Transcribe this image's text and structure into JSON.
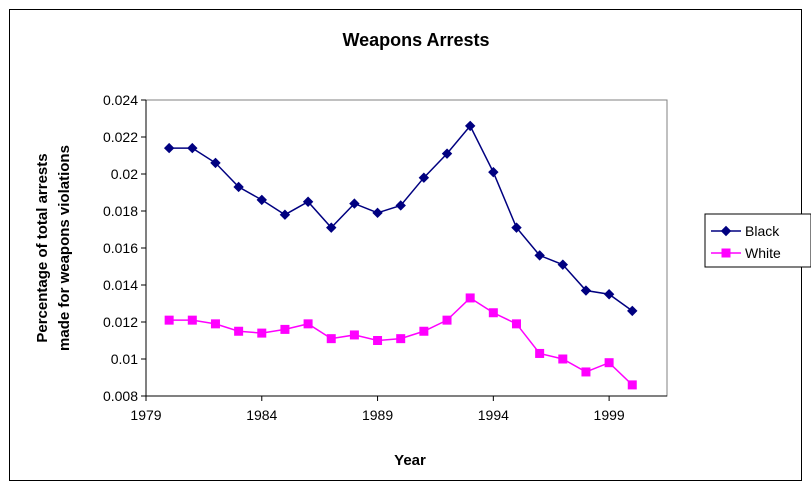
{
  "chart_data": {
    "type": "line",
    "title": "Weapons Arrests",
    "xlabel": "Year",
    "ylabel": "Percentage of total arrests made for weapons violations",
    "ylabel_lines": [
      "Percentage of total arrests",
      "made for weapons violations"
    ],
    "xlim": [
      1979,
      2001.5
    ],
    "ylim": [
      0.008,
      0.024
    ],
    "x_ticks": [
      1979,
      1984,
      1989,
      1994,
      1999
    ],
    "y_ticks": [
      0.008,
      0.01,
      0.012,
      0.014,
      0.016,
      0.018,
      0.02,
      0.022,
      0.024
    ],
    "y_tick_labels": [
      "0.008",
      "0.01",
      "0.012",
      "0.014",
      "0.016",
      "0.018",
      "0.02",
      "0.022",
      "0.024"
    ],
    "legend_position": "right",
    "x": [
      1980,
      1981,
      1982,
      1983,
      1984,
      1985,
      1986,
      1987,
      1988,
      1989,
      1990,
      1991,
      1992,
      1993,
      1994,
      1995,
      1996,
      1997,
      1998,
      1999,
      2000
    ],
    "series": [
      {
        "name": "Black",
        "color": "#000080",
        "marker": "diamond",
        "values": [
          0.0214,
          0.0214,
          0.0206,
          0.0193,
          0.0186,
          0.0178,
          0.0185,
          0.0171,
          0.0184,
          0.0179,
          0.0183,
          0.0198,
          0.0211,
          0.0226,
          0.0201,
          0.0171,
          0.0156,
          0.0151,
          0.0137,
          0.0135,
          0.0126
        ]
      },
      {
        "name": "White",
        "color": "#ff00ff",
        "marker": "square",
        "values": [
          0.0121,
          0.0121,
          0.0119,
          0.0115,
          0.0114,
          0.0116,
          0.0119,
          0.0111,
          0.0113,
          0.011,
          0.0111,
          0.0115,
          0.0121,
          0.0133,
          0.0125,
          0.0119,
          0.0103,
          0.01,
          0.0093,
          0.0098,
          0.0086
        ]
      }
    ]
  }
}
